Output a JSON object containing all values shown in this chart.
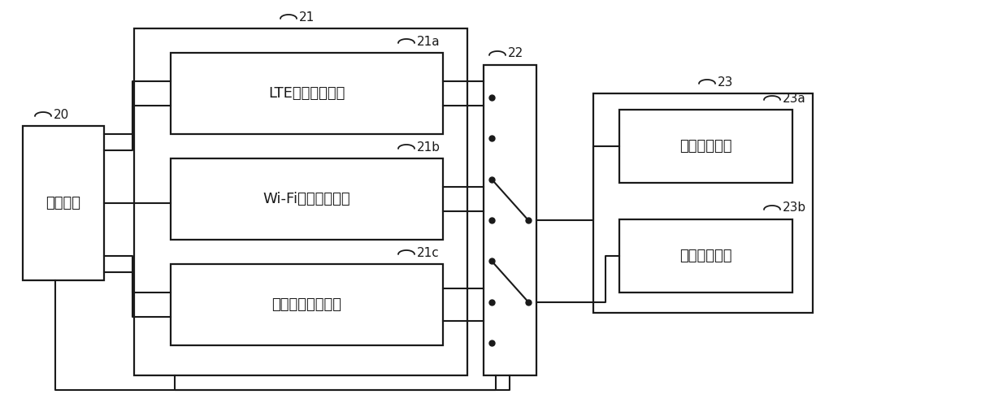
{
  "bg_color": "#ffffff",
  "line_color": "#1a1a1a",
  "font_size_label": 13,
  "font_size_ref": 11,
  "labels": {
    "ctrl_chip": "控制芯片",
    "lte": "LTE调制解调电路",
    "wifi": "Wi-Fi调制解调电路",
    "bt": "蓝牙调制解调电路",
    "rf_rx": "射频接收链路",
    "rf_tx": "射频发送链路"
  },
  "refs": {
    "r20": "20",
    "r21": "21",
    "r21a": "21a",
    "r21b": "21b",
    "r21c": "21c",
    "r22": "22",
    "r23": "23",
    "r23a": "23a",
    "r23b": "23b"
  }
}
